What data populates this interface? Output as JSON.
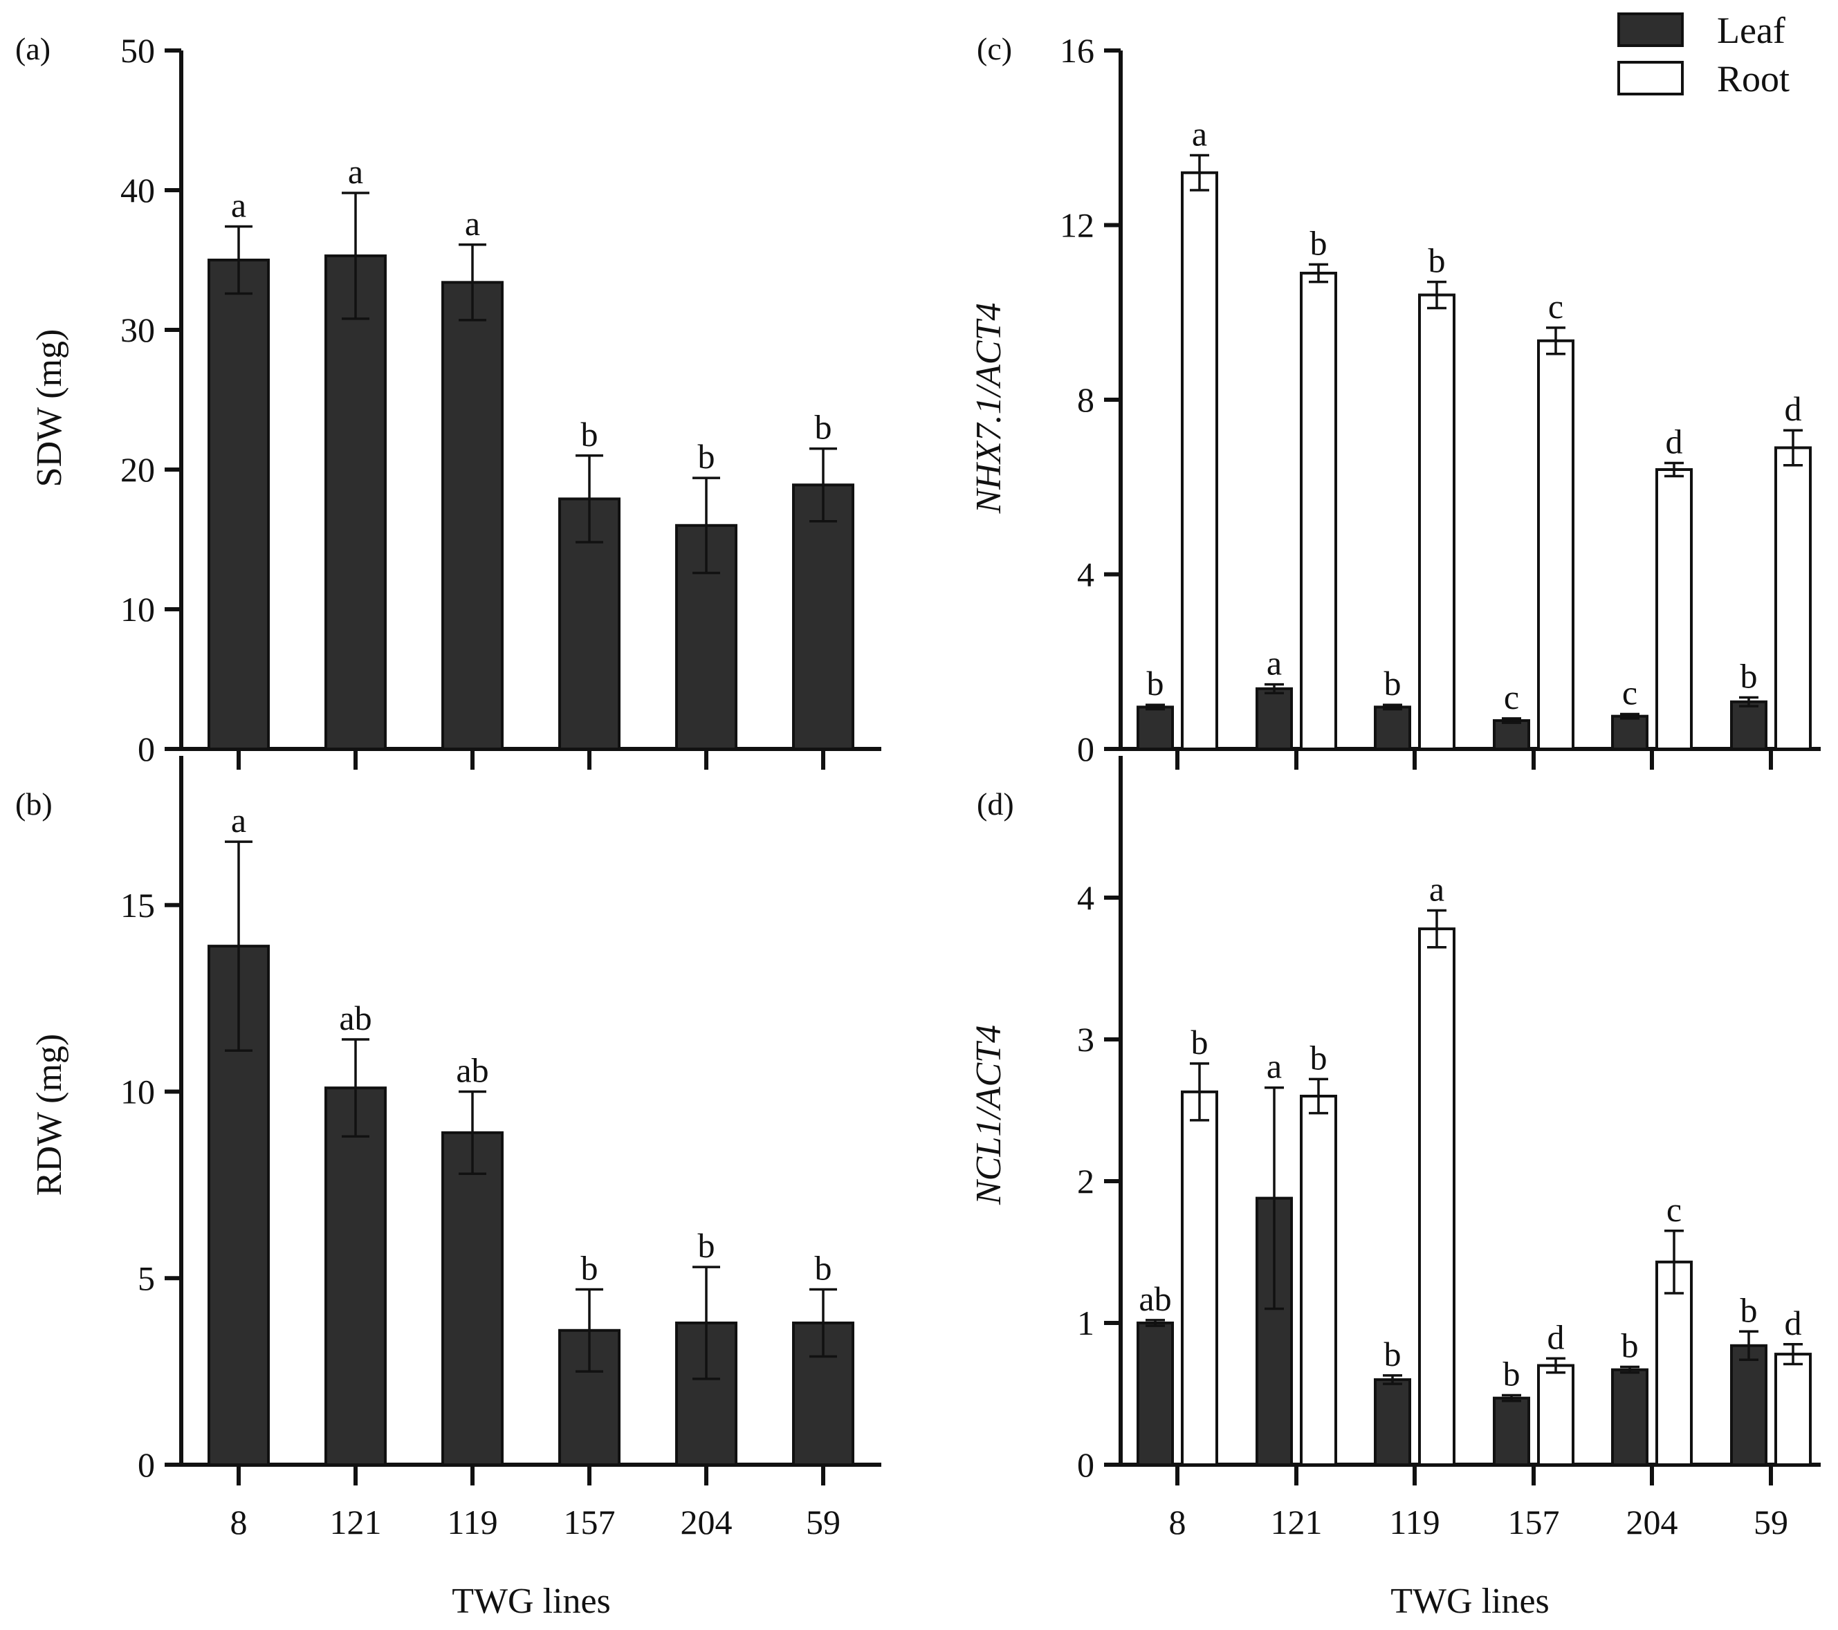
{
  "colors": {
    "leaf": "#2e2e2e",
    "root": "#ffffff",
    "axis": "#111111"
  },
  "legend": {
    "leaf": "Leaf",
    "root": "Root"
  },
  "chart_data": [
    {
      "id": "a",
      "panel_label": "(a)",
      "type": "bar",
      "title": "",
      "xlabel": "",
      "ylabel": "SDW (mg)",
      "ylabel_italic": false,
      "ylim": [
        0,
        50
      ],
      "yticks": [
        0,
        10,
        20,
        30,
        40,
        50
      ],
      "categories": [
        "8",
        "121",
        "119",
        "157",
        "204",
        "59"
      ],
      "show_tick_labels": false,
      "series": [
        {
          "name": "Leaf",
          "values": [
            35.0,
            35.3,
            33.4,
            17.9,
            16.0,
            18.9
          ],
          "errors": [
            2.4,
            4.5,
            2.7,
            3.1,
            3.4,
            2.6
          ],
          "letters": [
            "a",
            "a",
            "a",
            "b",
            "b",
            "b"
          ]
        }
      ]
    },
    {
      "id": "b",
      "panel_label": "(b)",
      "type": "bar",
      "title": "",
      "xlabel": "TWG lines",
      "ylabel": "RDW (mg)",
      "ylabel_italic": false,
      "ylim": [
        0,
        19
      ],
      "yticks": [
        0,
        5,
        10,
        15
      ],
      "categories": [
        "8",
        "121",
        "119",
        "157",
        "204",
        "59"
      ],
      "show_tick_labels": true,
      "series": [
        {
          "name": "Leaf",
          "values": [
            13.9,
            10.1,
            8.9,
            3.6,
            3.8,
            3.8
          ],
          "errors": [
            2.8,
            1.3,
            1.1,
            1.1,
            1.5,
            0.9
          ],
          "letters": [
            "a",
            "ab",
            "ab",
            "b",
            "b",
            "b"
          ]
        }
      ]
    },
    {
      "id": "c",
      "panel_label": "(c)",
      "type": "bar",
      "title": "",
      "xlabel": "",
      "ylabel": "NHX7.1/ACT4",
      "ylabel_italic": true,
      "ylim": [
        0,
        16
      ],
      "yticks": [
        0,
        4,
        8,
        12,
        16
      ],
      "categories": [
        "8",
        "121",
        "119",
        "157",
        "204",
        "59"
      ],
      "show_tick_labels": false,
      "series": [
        {
          "name": "Leaf",
          "values": [
            0.96,
            1.38,
            0.96,
            0.65,
            0.75,
            1.08
          ],
          "errors": [
            0.05,
            0.1,
            0.05,
            0.05,
            0.05,
            0.1
          ],
          "letters": [
            "b",
            "a",
            "b",
            "c",
            "c",
            "b"
          ]
        },
        {
          "name": "Root",
          "values": [
            13.2,
            10.9,
            10.4,
            9.35,
            6.4,
            6.9
          ],
          "errors": [
            0.4,
            0.2,
            0.3,
            0.3,
            0.15,
            0.4
          ],
          "letters": [
            "a",
            "b",
            "b",
            "c",
            "d",
            "d"
          ]
        }
      ]
    },
    {
      "id": "d",
      "panel_label": "(d)",
      "type": "bar",
      "title": "",
      "xlabel": "TWG lines",
      "ylabel": "NCL1/ACT4",
      "ylabel_italic": true,
      "ylim": [
        0,
        5
      ],
      "yticks": [
        0,
        1,
        2,
        3,
        4
      ],
      "categories": [
        "8",
        "121",
        "119",
        "157",
        "204",
        "59"
      ],
      "show_tick_labels": true,
      "series": [
        {
          "name": "Leaf",
          "values": [
            1.0,
            1.88,
            0.6,
            0.47,
            0.67,
            0.84
          ],
          "errors": [
            0.02,
            0.78,
            0.03,
            0.02,
            0.02,
            0.1
          ],
          "letters": [
            "ab",
            "a",
            "b",
            "b",
            "b",
            "b"
          ]
        },
        {
          "name": "Root",
          "values": [
            2.63,
            2.6,
            3.78,
            0.7,
            1.43,
            0.78
          ],
          "errors": [
            0.2,
            0.12,
            0.13,
            0.05,
            0.22,
            0.07
          ],
          "letters": [
            "b",
            "b",
            "a",
            "d",
            "c",
            "d"
          ]
        }
      ]
    }
  ]
}
